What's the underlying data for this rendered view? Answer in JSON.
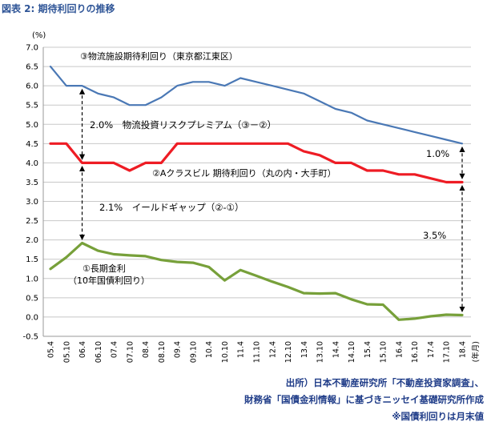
{
  "figure": {
    "title": "図表 2: 期待利回りの推移"
  },
  "colors": {
    "logistics": "#4a78b5",
    "office": "#ee1c24",
    "jgb": "#77a03a",
    "title": "#2f5597",
    "source": "#1f3c88"
  },
  "chart_data": {
    "type": "line",
    "title": "",
    "y_unit_label": "(%)",
    "x_unit_label": "(年月)",
    "ylim": [
      -0.5,
      7.0
    ],
    "y_ticks": [
      "-0.5",
      "0.0",
      "0.5",
      "1.0",
      "1.5",
      "2.0",
      "2.5",
      "3.0",
      "3.5",
      "4.0",
      "4.5",
      "5.0",
      "5.5",
      "6.0",
      "6.5",
      "7.0"
    ],
    "grid": "horizontal",
    "categories": [
      "05.4",
      "05.10",
      "06.4",
      "06.10",
      "07.4",
      "07.10",
      "08.4",
      "08.10",
      "09.4",
      "09.10",
      "10.4",
      "10.10",
      "11.4",
      "11.10",
      "12.4",
      "12.10",
      "13.4",
      "13.10",
      "14.4",
      "14.10",
      "15.4",
      "15.10",
      "16.4",
      "16.10",
      "17.4",
      "17.10",
      "18.4"
    ],
    "series": [
      {
        "name": "③物流施設期待利回り（東京都江東区）",
        "color": "#4a78b5",
        "values": [
          6.5,
          6.0,
          6.0,
          5.8,
          5.7,
          5.5,
          5.5,
          5.7,
          6.0,
          6.1,
          6.1,
          6.0,
          6.2,
          6.1,
          6.0,
          5.9,
          5.8,
          5.6,
          5.4,
          5.3,
          5.1,
          5.0,
          4.9,
          4.8,
          4.7,
          4.6,
          4.5
        ]
      },
      {
        "name": "②Aクラスビル 期待利回り（丸の内・大手町）",
        "color": "#ee1c24",
        "values": [
          4.5,
          4.5,
          4.0,
          4.0,
          4.0,
          3.8,
          4.0,
          4.0,
          4.5,
          4.5,
          4.5,
          4.5,
          4.5,
          4.5,
          4.5,
          4.5,
          4.3,
          4.2,
          4.0,
          4.0,
          3.8,
          3.8,
          3.7,
          3.7,
          3.6,
          3.5,
          3.5
        ]
      },
      {
        "name": "①長期金利\n（10年国債利回り）",
        "color": "#77a03a",
        "values": [
          1.25,
          1.55,
          1.92,
          1.72,
          1.63,
          1.6,
          1.58,
          1.48,
          1.43,
          1.41,
          1.3,
          0.95,
          1.22,
          1.07,
          0.92,
          0.78,
          0.62,
          0.61,
          0.62,
          0.46,
          0.33,
          0.32,
          -0.07,
          -0.04,
          0.02,
          0.06,
          0.05
        ]
      }
    ],
    "annotations": [
      {
        "text": "2.0%　物流投資リスクプレミアム（③－②）",
        "x_category": "06.4",
        "y_from": 6.0,
        "y_to": 4.0
      },
      {
        "text": "2.1%　イールドギャップ（②-①）",
        "x_category": "06.4",
        "y_from": 4.0,
        "y_to": 1.92
      },
      {
        "text": "1.0%",
        "x_category": "18.4",
        "y_from": 4.5,
        "y_to": 3.5
      },
      {
        "text": "3.5%",
        "x_category": "18.4",
        "y_from": 3.5,
        "y_to": 0.05
      }
    ]
  },
  "source": {
    "line1": "出所）日本不動産研究所「不動産投資家調査」、",
    "line2": "財務省「国債金利情報」に基づきニッセイ基礎研究所作成",
    "line3": "※国債利回りは月末値"
  }
}
